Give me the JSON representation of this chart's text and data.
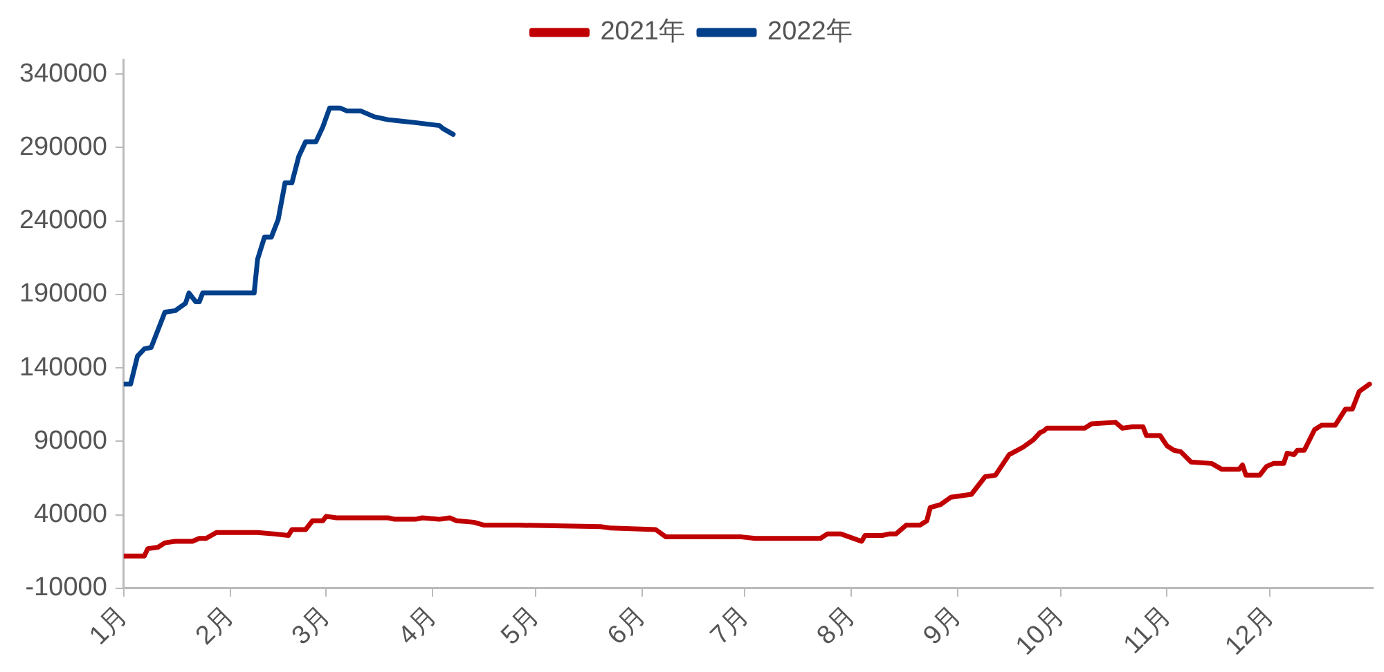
{
  "chart_data": {
    "type": "line",
    "legend": "top",
    "grid": false,
    "marker": "none",
    "line_style": "solid",
    "xlim": [
      "--01-01",
      "--12-31"
    ],
    "xticks": [
      {
        "value": "--01-01",
        "label": "1月"
      },
      {
        "value": "--02-01",
        "label": "2月"
      },
      {
        "value": "--03-01",
        "label": "3月"
      },
      {
        "value": "--04-01",
        "label": "4月"
      },
      {
        "value": "--05-01",
        "label": "5月"
      },
      {
        "value": "--06-01",
        "label": "6月"
      },
      {
        "value": "--07-01",
        "label": "7月"
      },
      {
        "value": "--08-01",
        "label": "8月"
      },
      {
        "value": "--09-01",
        "label": "9月"
      },
      {
        "value": "--10-01",
        "label": "10月"
      },
      {
        "value": "--11-01",
        "label": "11月"
      },
      {
        "value": "--12-01",
        "label": "12月"
      }
    ],
    "ylim": [
      -10000,
      350000
    ],
    "yticks": [
      -10000,
      40000,
      90000,
      140000,
      190000,
      240000,
      290000,
      340000
    ],
    "series": [
      {
        "name": "2021年",
        "color": "#c00000",
        "x": [
          "--01-01",
          "--01-07",
          "--01-08",
          "--01-11",
          "--01-13",
          "--01-16",
          "--01-21",
          "--01-23",
          "--01-25",
          "--01-28",
          "--02-09",
          "--02-14",
          "--02-18",
          "--02-19",
          "--02-23",
          "--02-25",
          "--02-28",
          "--03-01",
          "--03-04",
          "--03-19",
          "--03-21",
          "--03-27",
          "--03-29",
          "--04-03",
          "--04-06",
          "--04-08",
          "--04-13",
          "--04-16",
          "--04-26",
          "--05-20",
          "--05-23",
          "--06-05",
          "--06-08",
          "--06-30",
          "--07-04",
          "--07-23",
          "--07-25",
          "--07-29",
          "--08-04",
          "--08-05",
          "--08-10",
          "--08-12",
          "--08-14",
          "--08-17",
          "--08-21",
          "--08-23",
          "--08-24",
          "--08-27",
          "--08-30",
          "--09-05",
          "--09-09",
          "--09-12",
          "--09-16",
          "--09-20",
          "--09-23",
          "--09-25",
          "--09-26",
          "--09-27",
          "--10-08",
          "--10-10",
          "--10-17",
          "--10-19",
          "--10-22",
          "--10-25",
          "--10-26",
          "--10-30",
          "--11-01",
          "--11-03",
          "--11-05",
          "--11-08",
          "--11-14",
          "--11-17",
          "--11-22",
          "--11-23",
          "--11-24",
          "--11-28",
          "--11-30",
          "--12-02",
          "--12-05",
          "--12-06",
          "--12-08",
          "--12-09",
          "--12-11",
          "--12-14",
          "--12-16",
          "--12-20",
          "--12-23",
          "--12-25",
          "--12-27",
          "--12-30"
        ],
        "values": [
          12000,
          12000,
          17000,
          18000,
          21000,
          22000,
          22000,
          24000,
          24000,
          28000,
          28000,
          27000,
          26000,
          30000,
          30000,
          36000,
          36000,
          39000,
          38000,
          38000,
          37000,
          37000,
          38000,
          37000,
          38000,
          36000,
          35000,
          33000,
          33000,
          32000,
          31000,
          30000,
          25000,
          25000,
          24000,
          24000,
          27000,
          27000,
          22000,
          26000,
          26000,
          27000,
          27000,
          33000,
          33000,
          36000,
          45000,
          47000,
          52000,
          54000,
          66000,
          67000,
          81000,
          86000,
          91000,
          96000,
          97000,
          99000,
          99000,
          102000,
          103000,
          99000,
          100000,
          100000,
          94000,
          94000,
          87000,
          84000,
          83000,
          76000,
          75000,
          71000,
          71000,
          74000,
          67000,
          67000,
          73000,
          75000,
          75000,
          82000,
          81000,
          84000,
          84000,
          98000,
          101000,
          101000,
          112000,
          112000,
          124000,
          129000
        ]
      },
      {
        "name": "2022年",
        "color": "#003f8a",
        "x": [
          "--01-01",
          "--01-03",
          "--01-05",
          "--01-07",
          "--01-09",
          "--01-13",
          "--01-16",
          "--01-19",
          "--01-20",
          "--01-22",
          "--01-23",
          "--01-24",
          "--02-08",
          "--02-09",
          "--02-11",
          "--02-13",
          "--02-15",
          "--02-17",
          "--02-19",
          "--02-21",
          "--02-23",
          "--02-26",
          "--02-28",
          "--03-02",
          "--03-05",
          "--03-07",
          "--03-11",
          "--03-15",
          "--03-19",
          "--03-23",
          "--03-27",
          "--04-03",
          "--04-04",
          "--04-07"
        ],
        "values": [
          129000,
          129000,
          148000,
          153000,
          154000,
          178000,
          179000,
          184000,
          191000,
          185000,
          185000,
          191000,
          191000,
          214000,
          229000,
          229000,
          241000,
          266000,
          266000,
          284000,
          294000,
          294000,
          304000,
          317000,
          317000,
          315000,
          315000,
          311000,
          309000,
          308000,
          307000,
          305000,
          303000,
          299000
        ]
      }
    ]
  }
}
